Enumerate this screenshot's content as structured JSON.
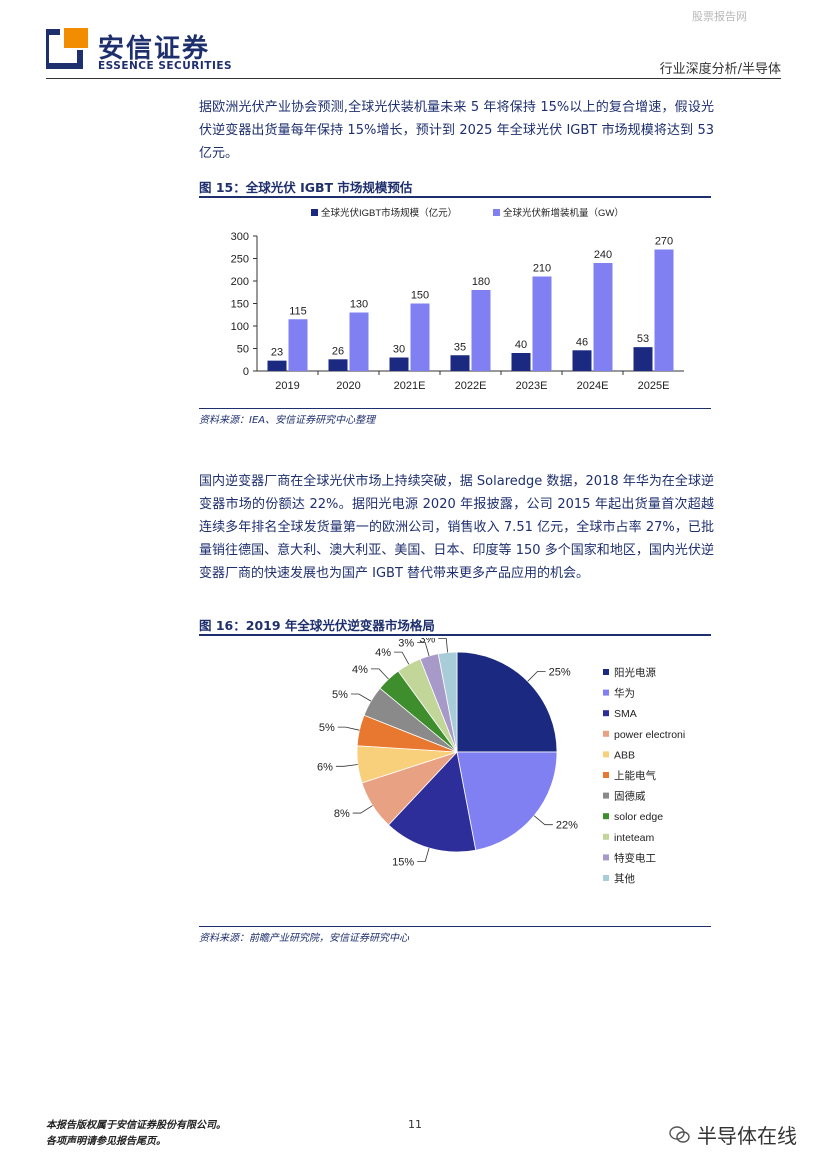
{
  "watermark": "股票报告网",
  "header": {
    "brand_cn": "安信证券",
    "brand_en": "ESSENCE SECURITIES",
    "category": "行业深度分析/半导体"
  },
  "paragraphs": [
    "据欧洲光伏产业协会预测,全球光伏装机量未来 5 年将保持 15%以上的复合增速，假设光伏逆变器出货量每年保持 15%增长，预计到 2025 年全球光伏 IGBT 市场规模将达到 53 亿元。",
    "国内逆变器厂商在全球光伏市场上持续突破，据 Solaredge 数据，2018 年华为在全球逆变器市场的份额达 22%。据阳光电源 2020 年报披露，公司 2015 年起出货量首次超越连续多年排名全球发货量第一的欧洲公司，销售收入 7.51 亿元，全球市占率 27%，已批量销往德国、意大利、澳大利亚、美国、日本、印度等 150 多个国家和地区，国内光伏逆变器厂商的快速发展也为国产 IGBT 替代带来更多产品应用的机会。"
  ],
  "figures": {
    "fig15_title": "图 15：全球光伏 IGBT 市场规模预估",
    "fig15_source": "资料来源：IEA、安信证券研究中心整理",
    "fig16_title": "图 16：2019 年全球光伏逆变器市场格局",
    "fig16_source": "资料来源：前瞻产业研究院，安信证券研究中心"
  },
  "footer": {
    "line1": "本报告版权属于安信证券股份有限公司。",
    "line2": "各项声明请参见报告尾页。",
    "page": "11",
    "wechat": "半导体在线"
  },
  "chart_data": [
    {
      "type": "bar",
      "categories": [
        "2019",
        "2020",
        "2021E",
        "2022E",
        "2023E",
        "2024E",
        "2025E"
      ],
      "series": [
        {
          "name": "全球光伏IGBT市场规模（亿元）",
          "values": [
            23,
            26,
            30,
            35,
            40,
            46,
            53
          ],
          "color": "#1b2a80"
        },
        {
          "name": "全球光伏新增装机量（GW）",
          "values": [
            115,
            130,
            150,
            180,
            210,
            240,
            270
          ],
          "color": "#8080f2"
        }
      ],
      "ylim": [
        0,
        300
      ],
      "yticks": [
        0,
        50,
        100,
        150,
        200,
        250,
        300
      ],
      "legend": "top",
      "grid": false
    },
    {
      "type": "pie",
      "labels": [
        "阳光电源",
        "华为",
        "SMA",
        "power electroni",
        "ABB",
        "上能电气",
        "固德威",
        "solor edge",
        "inteteam",
        "特变电工",
        "其他"
      ],
      "values": [
        25,
        22,
        15,
        8,
        6,
        5,
        5,
        4,
        4,
        3,
        3
      ],
      "display_labels": [
        "25%",
        "22%",
        "15%",
        "8%",
        "6%",
        "5%",
        "5%",
        "4%",
        "4%",
        "3%",
        "3%"
      ],
      "colors": [
        "#1b2a80",
        "#8080f2",
        "#2e2e9a",
        "#e9a184",
        "#f8cf7a",
        "#e8782f",
        "#8a8a8a",
        "#3e8e2e",
        "#c3d69a",
        "#a79ac8",
        "#a9ccd9"
      ],
      "legend": "right"
    }
  ]
}
